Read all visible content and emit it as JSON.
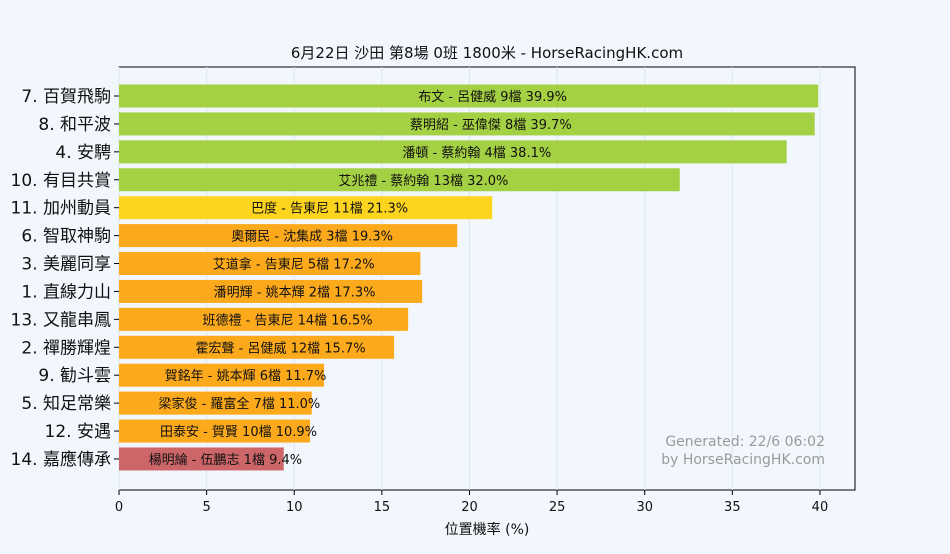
{
  "chart_data": {
    "type": "bar",
    "orientation": "horizontal",
    "title": "6月22日  沙田  第8場  0班  1800米 - HorseRacingHK.com",
    "xlabel": "位置機率 (%)",
    "ylabel": "",
    "xlim": [
      0,
      42
    ],
    "xticks": [
      0,
      5,
      10,
      15,
      20,
      25,
      30,
      35,
      40
    ],
    "grid": true,
    "watermark": [
      "Generated: 22/6 06:02",
      "by HorseRacingHK.com"
    ],
    "categories": [
      "7. 百賀飛駒",
      "8. 和平波",
      "4. 安騁",
      "10. 有目共賞",
      "11. 加州動員",
      "6. 智取神駒",
      "3. 美麗同享",
      "1. 直線力山",
      "13. 又龍串鳳",
      "2. 禪勝輝煌",
      "9. 勧斗雲",
      "5. 知足常樂",
      "12. 安遇",
      "14. 嘉應傳承"
    ],
    "bar_labels": [
      "布文 - 呂健威 9檔  39.9%",
      "蔡明紹 - 巫偉傑 8檔  39.7%",
      "潘頓 - 蔡約翰 4檔  38.1%",
      "艾兆禮 - 蔡約翰 13檔  32.0%",
      "巴度 - 告東尼 11檔  21.3%",
      "奧爾民 - 沈集成 3檔  19.3%",
      "艾道拿 - 告東尼 5檔  17.2%",
      "潘明輝 - 姚本輝 2檔  17.3%",
      "班德禮 - 告東尼 14檔  16.5%",
      "霍宏聲 - 呂健威 12檔  15.7%",
      "賀銘年 - 姚本輝 6檔  11.7%",
      "梁家俊 - 羅富全 7檔  11.0%",
      "田泰安 - 賀賢 10檔  10.9%",
      "楊明綸 - 伍鵬志 1檔  9.4%"
    ],
    "values": [
      39.9,
      39.7,
      38.1,
      32.0,
      21.3,
      19.3,
      17.2,
      17.3,
      16.5,
      15.7,
      11.7,
      11.0,
      10.9,
      9.4
    ],
    "colors": [
      "#a4d043",
      "#a4d043",
      "#a4d043",
      "#a4d043",
      "#fdd51e",
      "#fcaa1c",
      "#fcaa1c",
      "#fcaa1c",
      "#fcaa1c",
      "#fcaa1c",
      "#fcaa1c",
      "#fcaa1c",
      "#fcaa1c",
      "#cd6668"
    ]
  }
}
